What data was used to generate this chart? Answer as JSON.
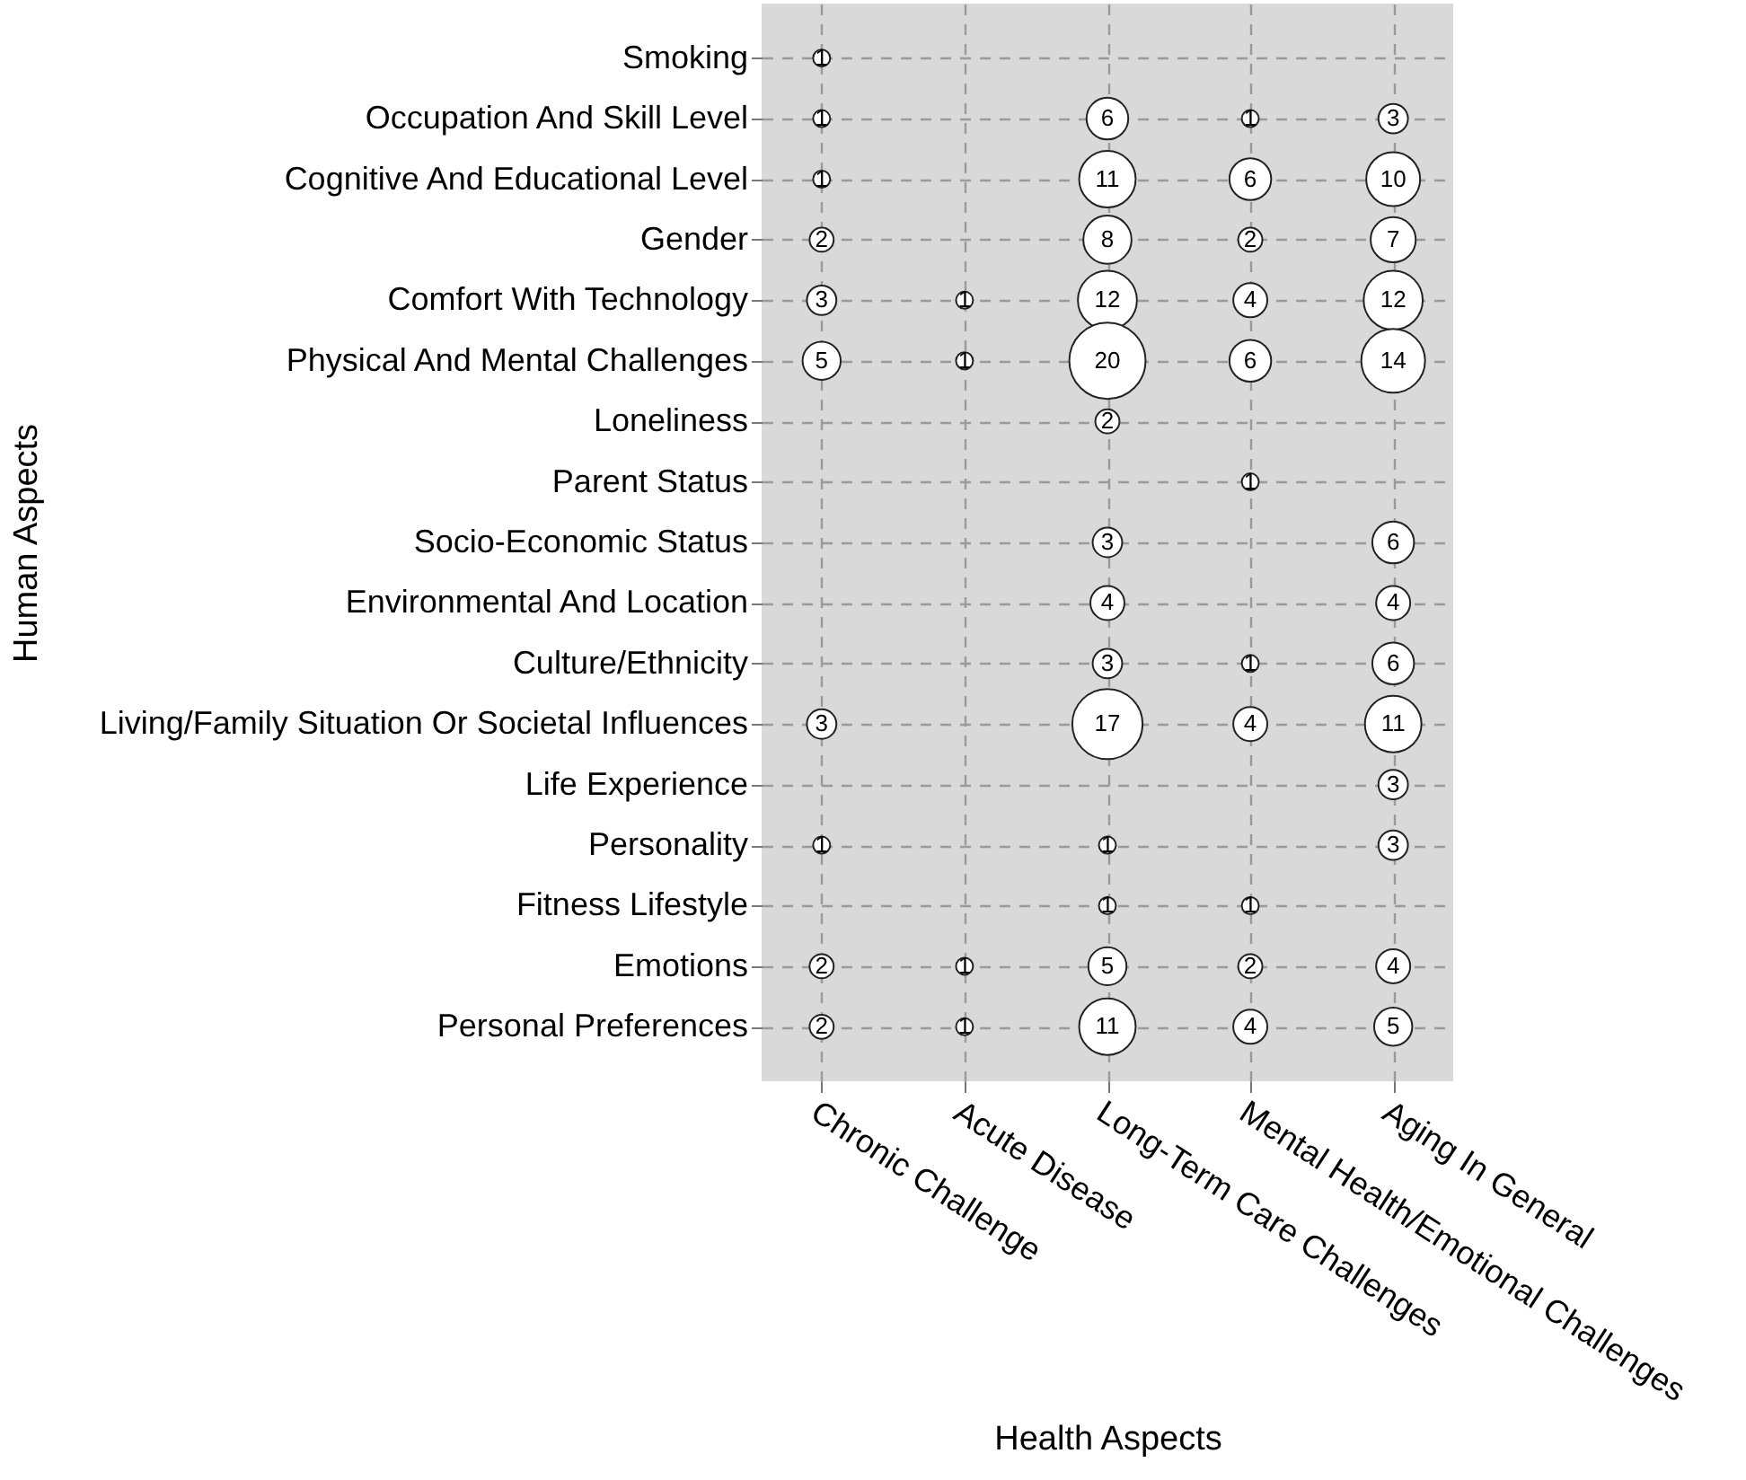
{
  "chart_data": {
    "type": "heatmap",
    "xlabel": "Health Aspects",
    "ylabel": "Human Aspects",
    "categories": [
      "Chronic Challenge",
      "Acute Disease",
      "Long-Term Care Challenges",
      "Mental Health/Emotional Challenges",
      "Aging In General"
    ],
    "y_categories": [
      "Smoking",
      "Occupation And Skill Level",
      "Cognitive And Educational Level",
      "Gender",
      "Comfort With Technology",
      "Physical And Mental Challenges",
      "Loneliness",
      "Parent Status",
      "Socio-Economic Status",
      "Environmental And Location",
      "Culture/Ethnicity",
      "Living/Family Situation Or Societal Influences",
      "Life Experience",
      "Personality",
      "Fitness Lifestyle",
      "Emotions",
      "Personal Preferences"
    ],
    "cells": [
      [
        1,
        null,
        null,
        null,
        null
      ],
      [
        1,
        null,
        6,
        1,
        3
      ],
      [
        1,
        null,
        11,
        6,
        10
      ],
      [
        2,
        null,
        8,
        2,
        7
      ],
      [
        3,
        1,
        12,
        4,
        12
      ],
      [
        5,
        1,
        20,
        6,
        14
      ],
      [
        null,
        null,
        2,
        null,
        null
      ],
      [
        null,
        null,
        null,
        1,
        null
      ],
      [
        null,
        null,
        3,
        null,
        6
      ],
      [
        null,
        null,
        4,
        null,
        4
      ],
      [
        null,
        null,
        3,
        1,
        6
      ],
      [
        3,
        null,
        17,
        4,
        11
      ],
      [
        null,
        null,
        null,
        null,
        3
      ],
      [
        1,
        null,
        1,
        null,
        3
      ],
      [
        null,
        null,
        1,
        1,
        null
      ],
      [
        2,
        1,
        5,
        2,
        4
      ],
      [
        2,
        1,
        11,
        4,
        5
      ]
    ],
    "color": "#ffffff",
    "grid": true,
    "data_labels": true
  }
}
